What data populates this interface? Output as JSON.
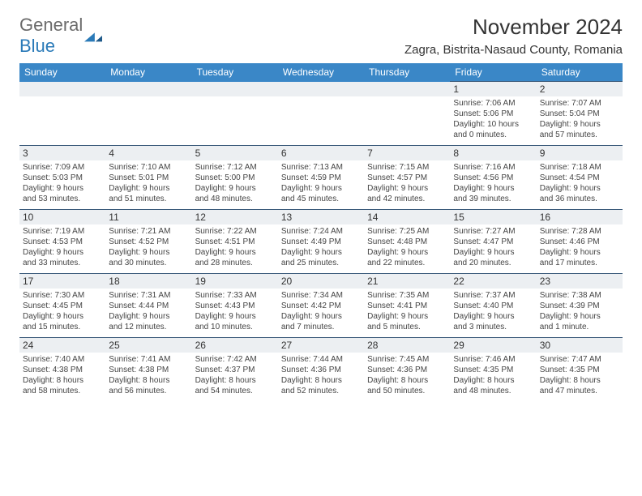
{
  "logo": {
    "text1": "General",
    "text2": "Blue"
  },
  "title": "November 2024",
  "location": "Zagra, Bistrita-Nasaud County, Romania",
  "header_bg": "#3a87c7",
  "daynum_bg": "#eceff2",
  "border_color": "#3a5a7a",
  "day_names": [
    "Sunday",
    "Monday",
    "Tuesday",
    "Wednesday",
    "Thursday",
    "Friday",
    "Saturday"
  ],
  "weeks": [
    [
      null,
      null,
      null,
      null,
      null,
      {
        "n": "1",
        "sr": "Sunrise: 7:06 AM",
        "ss": "Sunset: 5:06 PM",
        "d1": "Daylight: 10 hours",
        "d2": "and 0 minutes."
      },
      {
        "n": "2",
        "sr": "Sunrise: 7:07 AM",
        "ss": "Sunset: 5:04 PM",
        "d1": "Daylight: 9 hours",
        "d2": "and 57 minutes."
      }
    ],
    [
      {
        "n": "3",
        "sr": "Sunrise: 7:09 AM",
        "ss": "Sunset: 5:03 PM",
        "d1": "Daylight: 9 hours",
        "d2": "and 53 minutes."
      },
      {
        "n": "4",
        "sr": "Sunrise: 7:10 AM",
        "ss": "Sunset: 5:01 PM",
        "d1": "Daylight: 9 hours",
        "d2": "and 51 minutes."
      },
      {
        "n": "5",
        "sr": "Sunrise: 7:12 AM",
        "ss": "Sunset: 5:00 PM",
        "d1": "Daylight: 9 hours",
        "d2": "and 48 minutes."
      },
      {
        "n": "6",
        "sr": "Sunrise: 7:13 AM",
        "ss": "Sunset: 4:59 PM",
        "d1": "Daylight: 9 hours",
        "d2": "and 45 minutes."
      },
      {
        "n": "7",
        "sr": "Sunrise: 7:15 AM",
        "ss": "Sunset: 4:57 PM",
        "d1": "Daylight: 9 hours",
        "d2": "and 42 minutes."
      },
      {
        "n": "8",
        "sr": "Sunrise: 7:16 AM",
        "ss": "Sunset: 4:56 PM",
        "d1": "Daylight: 9 hours",
        "d2": "and 39 minutes."
      },
      {
        "n": "9",
        "sr": "Sunrise: 7:18 AM",
        "ss": "Sunset: 4:54 PM",
        "d1": "Daylight: 9 hours",
        "d2": "and 36 minutes."
      }
    ],
    [
      {
        "n": "10",
        "sr": "Sunrise: 7:19 AM",
        "ss": "Sunset: 4:53 PM",
        "d1": "Daylight: 9 hours",
        "d2": "and 33 minutes."
      },
      {
        "n": "11",
        "sr": "Sunrise: 7:21 AM",
        "ss": "Sunset: 4:52 PM",
        "d1": "Daylight: 9 hours",
        "d2": "and 30 minutes."
      },
      {
        "n": "12",
        "sr": "Sunrise: 7:22 AM",
        "ss": "Sunset: 4:51 PM",
        "d1": "Daylight: 9 hours",
        "d2": "and 28 minutes."
      },
      {
        "n": "13",
        "sr": "Sunrise: 7:24 AM",
        "ss": "Sunset: 4:49 PM",
        "d1": "Daylight: 9 hours",
        "d2": "and 25 minutes."
      },
      {
        "n": "14",
        "sr": "Sunrise: 7:25 AM",
        "ss": "Sunset: 4:48 PM",
        "d1": "Daylight: 9 hours",
        "d2": "and 22 minutes."
      },
      {
        "n": "15",
        "sr": "Sunrise: 7:27 AM",
        "ss": "Sunset: 4:47 PM",
        "d1": "Daylight: 9 hours",
        "d2": "and 20 minutes."
      },
      {
        "n": "16",
        "sr": "Sunrise: 7:28 AM",
        "ss": "Sunset: 4:46 PM",
        "d1": "Daylight: 9 hours",
        "d2": "and 17 minutes."
      }
    ],
    [
      {
        "n": "17",
        "sr": "Sunrise: 7:30 AM",
        "ss": "Sunset: 4:45 PM",
        "d1": "Daylight: 9 hours",
        "d2": "and 15 minutes."
      },
      {
        "n": "18",
        "sr": "Sunrise: 7:31 AM",
        "ss": "Sunset: 4:44 PM",
        "d1": "Daylight: 9 hours",
        "d2": "and 12 minutes."
      },
      {
        "n": "19",
        "sr": "Sunrise: 7:33 AM",
        "ss": "Sunset: 4:43 PM",
        "d1": "Daylight: 9 hours",
        "d2": "and 10 minutes."
      },
      {
        "n": "20",
        "sr": "Sunrise: 7:34 AM",
        "ss": "Sunset: 4:42 PM",
        "d1": "Daylight: 9 hours",
        "d2": "and 7 minutes."
      },
      {
        "n": "21",
        "sr": "Sunrise: 7:35 AM",
        "ss": "Sunset: 4:41 PM",
        "d1": "Daylight: 9 hours",
        "d2": "and 5 minutes."
      },
      {
        "n": "22",
        "sr": "Sunrise: 7:37 AM",
        "ss": "Sunset: 4:40 PM",
        "d1": "Daylight: 9 hours",
        "d2": "and 3 minutes."
      },
      {
        "n": "23",
        "sr": "Sunrise: 7:38 AM",
        "ss": "Sunset: 4:39 PM",
        "d1": "Daylight: 9 hours",
        "d2": "and 1 minute."
      }
    ],
    [
      {
        "n": "24",
        "sr": "Sunrise: 7:40 AM",
        "ss": "Sunset: 4:38 PM",
        "d1": "Daylight: 8 hours",
        "d2": "and 58 minutes."
      },
      {
        "n": "25",
        "sr": "Sunrise: 7:41 AM",
        "ss": "Sunset: 4:38 PM",
        "d1": "Daylight: 8 hours",
        "d2": "and 56 minutes."
      },
      {
        "n": "26",
        "sr": "Sunrise: 7:42 AM",
        "ss": "Sunset: 4:37 PM",
        "d1": "Daylight: 8 hours",
        "d2": "and 54 minutes."
      },
      {
        "n": "27",
        "sr": "Sunrise: 7:44 AM",
        "ss": "Sunset: 4:36 PM",
        "d1": "Daylight: 8 hours",
        "d2": "and 52 minutes."
      },
      {
        "n": "28",
        "sr": "Sunrise: 7:45 AM",
        "ss": "Sunset: 4:36 PM",
        "d1": "Daylight: 8 hours",
        "d2": "and 50 minutes."
      },
      {
        "n": "29",
        "sr": "Sunrise: 7:46 AM",
        "ss": "Sunset: 4:35 PM",
        "d1": "Daylight: 8 hours",
        "d2": "and 48 minutes."
      },
      {
        "n": "30",
        "sr": "Sunrise: 7:47 AM",
        "ss": "Sunset: 4:35 PM",
        "d1": "Daylight: 8 hours",
        "d2": "and 47 minutes."
      }
    ]
  ]
}
